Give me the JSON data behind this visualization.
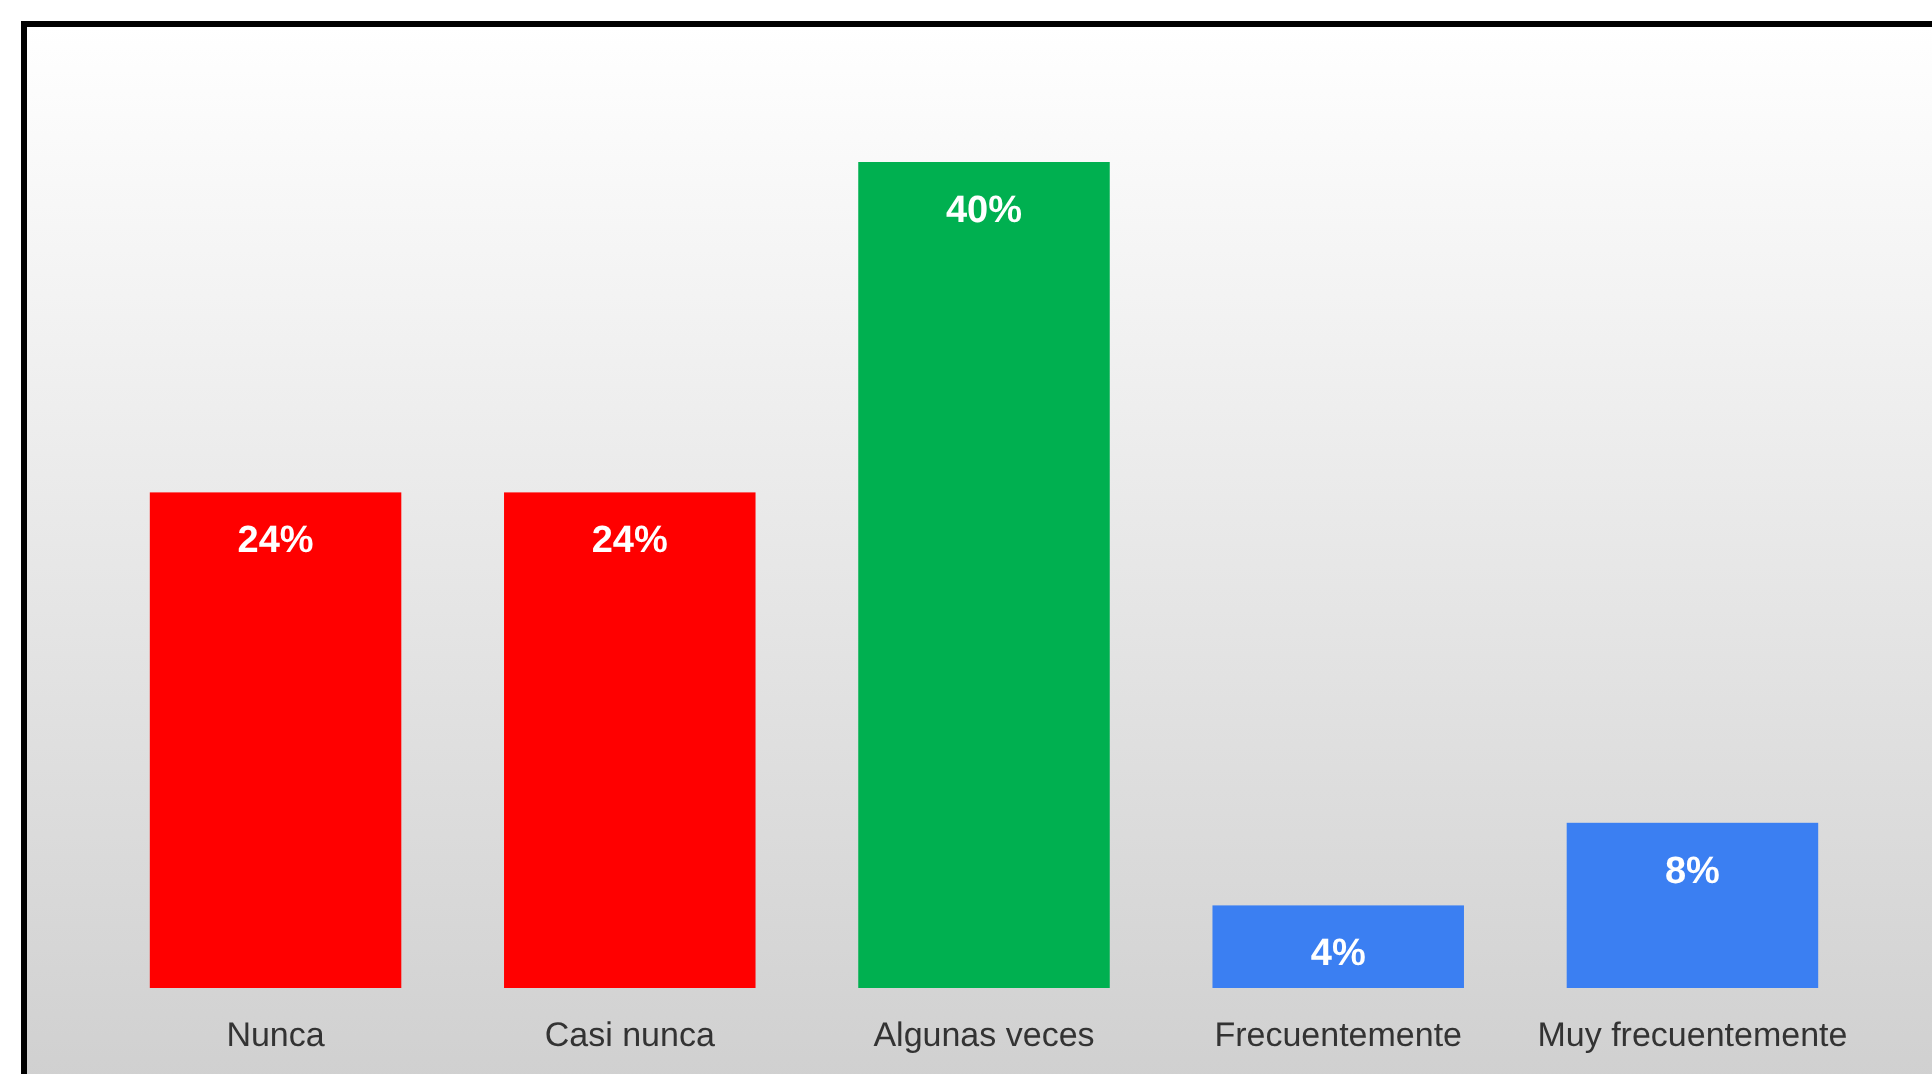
{
  "chart_data": {
    "type": "bar",
    "categories": [
      "Nunca",
      "Casi nunca",
      "Algunas veces",
      "Frecuentemente",
      "Muy frecuentemente"
    ],
    "values": [
      24,
      24,
      40,
      4,
      8
    ],
    "colors": [
      "#ff0000",
      "#ff0000",
      "#00b050",
      "#3b7ff2",
      "#3b7ff2"
    ],
    "value_labels": [
      "24%",
      "24%",
      "40%",
      "4%",
      "8%"
    ]
  }
}
